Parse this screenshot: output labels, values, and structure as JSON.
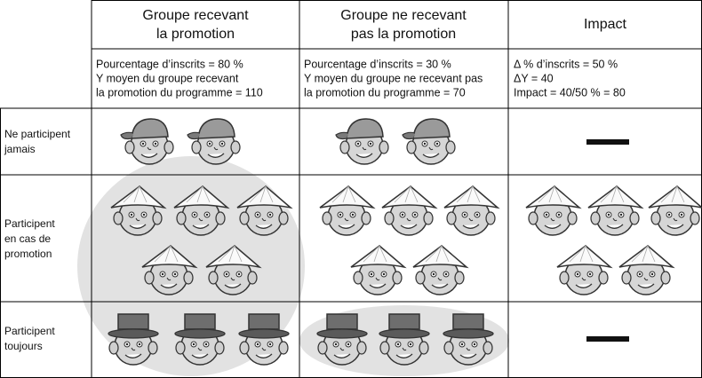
{
  "table": {
    "columns": [
      [
        "Groupe recevant",
        "la promotion"
      ],
      [
        "Groupe ne recevant",
        "pas la promotion"
      ],
      [
        "Impact"
      ]
    ],
    "summaries": [
      [
        "Pourcentage d’inscrits = 80 %",
        "Y moyen du groupe recevant",
        "la promotion du programme = 110"
      ],
      [
        "Pourcentage d’inscrits = 30 %",
        "Y moyen du groupe ne recevant pas",
        "la promotion du programme = 70"
      ],
      [
        "Δ % d’inscrits = 50 %",
        "ΔY = 40",
        "Impact = 40/50 % = 80"
      ]
    ],
    "rows": [
      {
        "label": [
          "Ne participent",
          "jamais"
        ]
      },
      {
        "label": [
          "Participent",
          "en cas de",
          "promotion"
        ]
      },
      {
        "label": [
          "Participent",
          "toujours"
        ]
      }
    ]
  }
}
